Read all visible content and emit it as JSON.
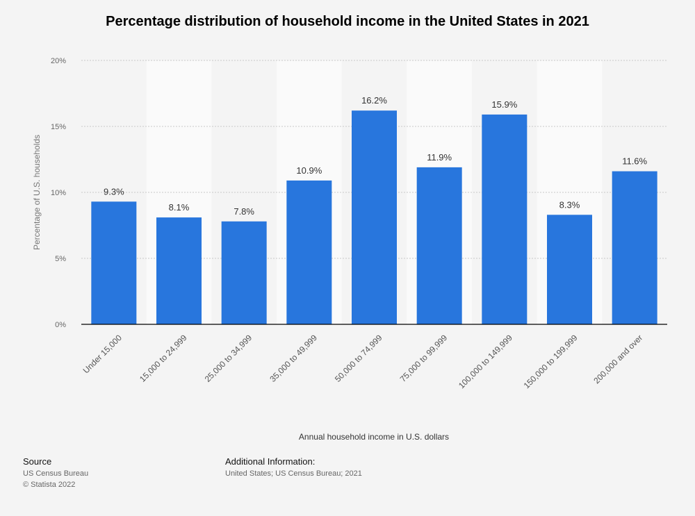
{
  "chart_data": {
    "type": "bar",
    "title": "Percentage distribution of household income in the United States in 2021",
    "xlabel": "Annual household income in U.S. dollars",
    "ylabel": "Percentage of U.S. households",
    "categories": [
      "Under 15,000",
      "15,000 to 24,999",
      "25,000 to 34,999",
      "35,000 to 49,999",
      "50,000 to 74,999",
      "75,000 to 99,999",
      "100,000 to 149,999",
      "150,000 to 199,999",
      "200,000 and over"
    ],
    "values": [
      9.3,
      8.1,
      7.8,
      10.9,
      16.2,
      11.9,
      15.9,
      8.3,
      11.6
    ],
    "value_labels": [
      "9.3%",
      "8.1%",
      "7.8%",
      "10.9%",
      "16.2%",
      "11.9%",
      "15.9%",
      "8.3%",
      "11.6%"
    ],
    "ylim": [
      0,
      20
    ],
    "yticks": [
      0,
      5,
      10,
      15,
      20
    ],
    "ytick_labels": [
      "0%",
      "5%",
      "10%",
      "15%",
      "20%"
    ],
    "grid": true,
    "colors": {
      "bar": "#2876dd",
      "band": "#fafafa",
      "grid": "#c8c8c8",
      "axis": "#000000"
    }
  },
  "footer": {
    "source_heading": "Source",
    "source_line1": "US Census Bureau",
    "source_line2": "© Statista 2022",
    "info_heading": "Additional Information:",
    "info_line1": "United States; US Census Bureau; 2021"
  }
}
